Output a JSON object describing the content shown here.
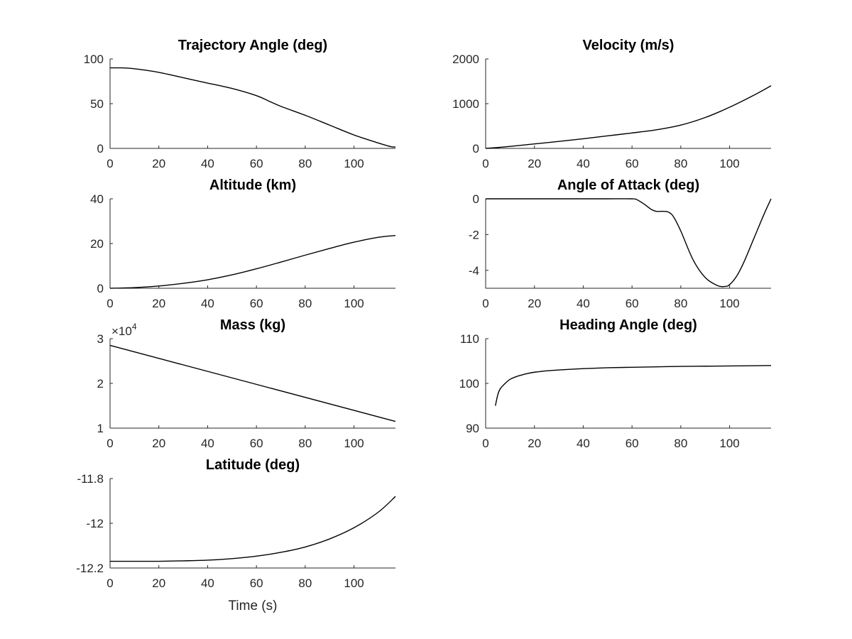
{
  "chart_data": [
    {
      "type": "line",
      "title": "Trajectory Angle (deg)",
      "xlabel": "",
      "ylabel": "",
      "xlim": [
        0,
        117
      ],
      "ylim": [
        0,
        100
      ],
      "xticks": [
        "0",
        "20",
        "40",
        "60",
        "80",
        "100"
      ],
      "yticks": [
        "0",
        "50",
        "100"
      ],
      "series": [
        {
          "x": [
            0,
            5,
            10,
            20,
            30,
            40,
            50,
            60,
            65,
            70,
            80,
            90,
            100,
            110,
            115,
            117
          ],
          "y": [
            90,
            90,
            89,
            85,
            79,
            73,
            67,
            59,
            53,
            47,
            37,
            26,
            15,
            6,
            2,
            1.5
          ]
        }
      ]
    },
    {
      "type": "line",
      "title": "Velocity (m/s)",
      "xlabel": "",
      "ylabel": "",
      "xlim": [
        0,
        117
      ],
      "ylim": [
        0,
        2000
      ],
      "xticks": [
        "0",
        "20",
        "40",
        "60",
        "80",
        "100"
      ],
      "yticks": [
        "0",
        "1000",
        "2000"
      ],
      "series": [
        {
          "x": [
            0,
            5,
            10,
            20,
            30,
            40,
            50,
            60,
            70,
            80,
            90,
            100,
            110,
            117
          ],
          "y": [
            0,
            20,
            45,
            100,
            155,
            215,
            280,
            345,
            415,
            520,
            690,
            920,
            1190,
            1400
          ]
        }
      ]
    },
    {
      "type": "line",
      "title": "Altitude (km)",
      "xlabel": "",
      "ylabel": "",
      "xlim": [
        0,
        117
      ],
      "ylim": [
        0,
        40
      ],
      "xticks": [
        "0",
        "20",
        "40",
        "60",
        "80",
        "100"
      ],
      "yticks": [
        "0",
        "20",
        "40"
      ],
      "series": [
        {
          "x": [
            0,
            10,
            20,
            30,
            40,
            50,
            60,
            70,
            80,
            90,
            100,
            110,
            117
          ],
          "y": [
            0,
            0.3,
            1.0,
            2.2,
            3.8,
            6.0,
            8.7,
            11.7,
            14.8,
            17.8,
            20.6,
            22.8,
            23.6
          ]
        }
      ]
    },
    {
      "type": "line",
      "title": "Angle of Attack (deg)",
      "xlabel": "",
      "ylabel": "",
      "xlim": [
        0,
        117
      ],
      "ylim": [
        -5,
        0
      ],
      "xticks": [
        "0",
        "20",
        "40",
        "60",
        "80",
        "100"
      ],
      "yticks": [
        "-4",
        "-2",
        "0"
      ],
      "series": [
        {
          "x": [
            0,
            10,
            20,
            30,
            40,
            50,
            60,
            62,
            65,
            68,
            70,
            73,
            75,
            77,
            80,
            85,
            90,
            95,
            98,
            100,
            103,
            106,
            110,
            114,
            117
          ],
          "y": [
            0,
            0,
            0,
            0,
            0,
            0,
            0,
            -0.05,
            -0.3,
            -0.6,
            -0.7,
            -0.7,
            -0.75,
            -1.0,
            -1.8,
            -3.4,
            -4.4,
            -4.85,
            -4.9,
            -4.8,
            -4.3,
            -3.5,
            -2.2,
            -0.9,
            0
          ]
        }
      ]
    },
    {
      "type": "line",
      "title": "Mass (kg)",
      "xlabel": "",
      "ylabel": "",
      "exponent": "×10",
      "exponent_power": "4",
      "xlim": [
        0,
        117
      ],
      "ylim": [
        1,
        3
      ],
      "xticks": [
        "0",
        "20",
        "40",
        "60",
        "80",
        "100"
      ],
      "yticks": [
        "1",
        "2",
        "3"
      ],
      "series": [
        {
          "x": [
            0,
            117
          ],
          "y": [
            2.85,
            1.15
          ]
        }
      ]
    },
    {
      "type": "line",
      "title": "Heading Angle (deg)",
      "xlabel": "",
      "ylabel": "",
      "xlim": [
        0,
        117
      ],
      "ylim": [
        90,
        110
      ],
      "xticks": [
        "0",
        "20",
        "40",
        "60",
        "80",
        "100"
      ],
      "yticks": [
        "90",
        "100",
        "110"
      ],
      "series": [
        {
          "x": [
            4,
            5,
            6,
            8,
            10,
            13,
            17,
            20,
            25,
            30,
            40,
            50,
            60,
            70,
            80,
            90,
            100,
            117
          ],
          "y": [
            95,
            97.5,
            98.8,
            100,
            100.9,
            101.6,
            102.2,
            102.5,
            102.8,
            103.0,
            103.3,
            103.5,
            103.6,
            103.7,
            103.8,
            103.85,
            103.9,
            104
          ]
        }
      ]
    },
    {
      "type": "line",
      "title": "Latitude (deg)",
      "xlabel": "Time (s)",
      "ylabel": "",
      "xlim": [
        0,
        117
      ],
      "ylim": [
        -12.2,
        -11.8
      ],
      "xticks": [
        "0",
        "20",
        "40",
        "60",
        "80",
        "100"
      ],
      "yticks": [
        "-12.2",
        "-12",
        "-11.8"
      ],
      "series": [
        {
          "x": [
            0,
            10,
            20,
            30,
            40,
            50,
            60,
            70,
            80,
            90,
            100,
            110,
            117
          ],
          "y": [
            -12.17,
            -12.17,
            -12.17,
            -12.168,
            -12.165,
            -12.158,
            -12.147,
            -12.13,
            -12.106,
            -12.07,
            -12.02,
            -11.95,
            -11.88
          ]
        }
      ]
    }
  ]
}
